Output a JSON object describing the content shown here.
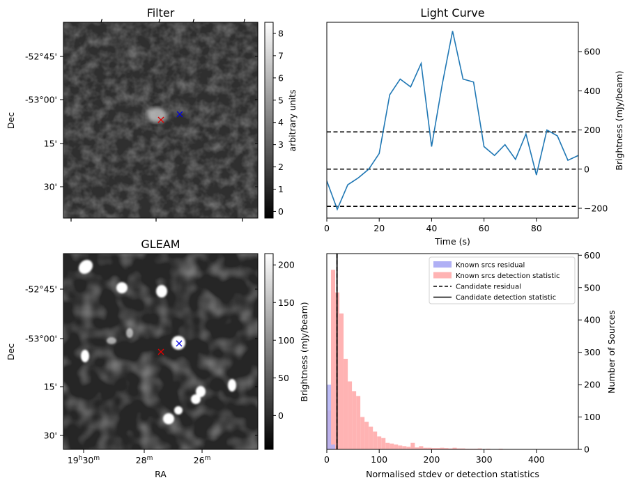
{
  "chart_data": [
    {
      "type": "heatmap",
      "title": "Filter",
      "xlabel": "",
      "ylabel": "Dec",
      "y_tick_labels": [
        "-52°45'",
        "-53°00'",
        "15'",
        "30'"
      ],
      "colorbar": {
        "label": "arbitrary units",
        "range": [
          -0.3,
          8.5
        ],
        "ticks": [
          0,
          1,
          2,
          3,
          4,
          5,
          6,
          7,
          8
        ]
      },
      "markers": [
        {
          "kind": "x",
          "color": "#e00000",
          "label": "red x"
        },
        {
          "kind": "x",
          "color": "#0000e0",
          "label": "blue x"
        }
      ]
    },
    {
      "type": "line",
      "title": "Light Curve",
      "xlabel": "Time (s)",
      "ylabel": "Brightness (mJy/beam)",
      "xlim": [
        0,
        96
      ],
      "ylim": [
        -250,
        750
      ],
      "x_ticks": [
        0,
        20,
        40,
        60,
        80
      ],
      "y_ticks": [
        -200,
        0,
        200,
        400,
        600
      ],
      "series": [
        {
          "color": "#1f77b4",
          "x": [
            0,
            4,
            8,
            12,
            16,
            20,
            24,
            28,
            32,
            36,
            40,
            44,
            48,
            52,
            56,
            60,
            64,
            68,
            72,
            76,
            80,
            84,
            88,
            92,
            96
          ],
          "y": [
            -60,
            -205,
            -80,
            -45,
            0,
            80,
            380,
            460,
            420,
            540,
            115,
            430,
            705,
            460,
            445,
            115,
            70,
            125,
            50,
            180,
            -30,
            200,
            170,
            45,
            70
          ]
        }
      ],
      "hlines": [
        190,
        0,
        -190
      ],
      "hline_style": "dashed"
    },
    {
      "type": "heatmap",
      "title": "GLEAM",
      "xlabel": "RA",
      "ylabel": "Dec",
      "x_tick_labels": [
        {
          "main": "19",
          "sup1": "h",
          "mid": "30",
          "sup2": "m"
        },
        {
          "main": "28",
          "sup1": "",
          "mid": "",
          "sup2": "m"
        },
        {
          "main": "26",
          "sup1": "",
          "mid": "",
          "sup2": "m"
        }
      ],
      "y_tick_labels": [
        "-52°45'",
        "-53°00'",
        "15'",
        "30'"
      ],
      "colorbar": {
        "label": "Brightness (mJy/beam)",
        "range": [
          -45,
          215
        ],
        "ticks": [
          0,
          50,
          100,
          150,
          200
        ]
      },
      "markers": [
        {
          "kind": "x",
          "color": "#e00000",
          "label": "red x"
        },
        {
          "kind": "x",
          "color": "#0000e0",
          "label": "blue x"
        }
      ]
    },
    {
      "type": "bar",
      "title": "",
      "xlabel": "Normalised stdev or detection statistics",
      "ylabel": "Number of Sources",
      "xlim": [
        0,
        480
      ],
      "ylim": [
        0,
        605
      ],
      "x_ticks": [
        0,
        100,
        200,
        300,
        400
      ],
      "y_ticks": [
        0,
        100,
        200,
        300,
        400,
        500,
        600
      ],
      "bin_width": 8,
      "series": [
        {
          "name": "Known srcs residual",
          "color": "#b0b0f5",
          "bin_starts": [
            0,
            8
          ],
          "values": [
            200,
            15
          ]
        },
        {
          "name": "Known srcs detection statistic",
          "color": "#ffb3b3",
          "bin_starts": [
            0,
            8,
            16,
            24,
            32,
            40,
            48,
            56,
            64,
            72,
            80,
            88,
            96,
            104,
            112,
            120,
            128,
            136,
            144,
            152,
            160,
            168,
            176,
            184,
            192,
            200,
            208,
            216,
            224,
            232,
            240,
            248,
            256,
            264,
            272,
            280,
            288,
            296,
            304,
            312,
            320,
            328,
            336,
            344,
            352,
            360,
            368,
            376,
            384,
            392,
            400,
            408,
            416,
            424,
            432,
            440,
            448,
            456,
            464,
            472
          ],
          "values": [
            120,
            555,
            485,
            420,
            280,
            210,
            180,
            165,
            100,
            85,
            70,
            55,
            40,
            35,
            20,
            18,
            15,
            12,
            10,
            8,
            20,
            6,
            10,
            5,
            5,
            4,
            4,
            5,
            4,
            3,
            5,
            3,
            3,
            2,
            2,
            2,
            3,
            1,
            2,
            1,
            1,
            2,
            1,
            1,
            1,
            1,
            0,
            1,
            0,
            1,
            0,
            0,
            1,
            0,
            0,
            0,
            0,
            1,
            0,
            0
          ]
        }
      ],
      "vlines": [
        {
          "name": "Candidate residual",
          "x": 19.5,
          "style": "dashed"
        },
        {
          "name": "Candidate detection statistic",
          "x": 19.5,
          "style": "solid"
        }
      ],
      "legend_placement": "top-right"
    }
  ]
}
